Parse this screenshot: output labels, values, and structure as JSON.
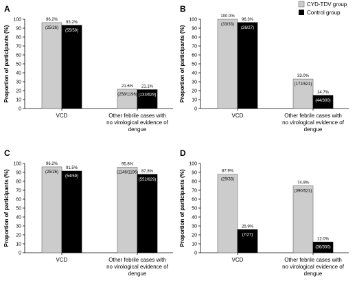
{
  "legend": {
    "placement": "top-right",
    "items": [
      {
        "label": "CYD-TDV group",
        "color": "#cccccc"
      },
      {
        "label": "Control group",
        "color": "#000000"
      }
    ]
  },
  "chart_data": [
    {
      "panel": "A",
      "type": "bar",
      "ylabel": "Proportion of participants (%)",
      "ylim": [
        0,
        100
      ],
      "yticks": [
        0,
        10,
        20,
        30,
        40,
        50,
        60,
        70,
        80,
        90,
        100
      ],
      "categories": [
        "VCD",
        "Other febrile cases with no virological evidence of dengue"
      ],
      "series": [
        {
          "name": "CYD-TDV group",
          "color": "#cccccc",
          "values": [
            96.2,
            21.6
          ],
          "pct_labels": [
            "96.2%",
            "21.6%"
          ],
          "count_labels": [
            "(25/26)",
            "(258/1196)"
          ]
        },
        {
          "name": "Control group",
          "color": "#000000",
          "values": [
            93.2,
            21.1
          ],
          "pct_labels": [
            "93.2%",
            "21.1%"
          ],
          "count_labels": [
            "(55/59)",
            "(133/629)"
          ]
        }
      ]
    },
    {
      "panel": "B",
      "type": "bar",
      "ylabel": "Proportion of participants (%)",
      "ylim": [
        0,
        100
      ],
      "yticks": [
        0,
        10,
        20,
        30,
        40,
        50,
        60,
        70,
        80,
        90,
        100
      ],
      "categories": [
        "VCD",
        "Other febrile cases with no virological evidence of dengue"
      ],
      "series": [
        {
          "name": "CYD-TDV group",
          "color": "#cccccc",
          "values": [
            100.0,
            33.0
          ],
          "pct_labels": [
            "100.0%",
            "33.0%"
          ],
          "count_labels": [
            "(33/33)",
            "(172/521)"
          ]
        },
        {
          "name": "Control group",
          "color": "#000000",
          "values": [
            96.3,
            14.7
          ],
          "pct_labels": [
            "96.3%",
            "14.7%"
          ],
          "count_labels": [
            "(26/27)",
            "(44/300)"
          ]
        }
      ]
    },
    {
      "panel": "C",
      "type": "bar",
      "ylabel": "Proportion of participants (%)",
      "ylim": [
        0,
        100
      ],
      "yticks": [
        0,
        10,
        20,
        30,
        40,
        50,
        60,
        70,
        80,
        90,
        100
      ],
      "categories": [
        "VCD",
        "Other febrile cases with no virological evidence of dengue"
      ],
      "series": [
        {
          "name": "CYD-TDV group",
          "color": "#cccccc",
          "values": [
            96.2,
            95.8
          ],
          "pct_labels": [
            "96.2%",
            "95.8%"
          ],
          "count_labels": [
            "(25/26)",
            "(1146/1196)"
          ]
        },
        {
          "name": "Control group",
          "color": "#000000",
          "values": [
            91.5,
            87.8
          ],
          "pct_labels": [
            "91.5%",
            "87.8%"
          ],
          "count_labels": [
            "(54/59)",
            "(552/629)"
          ]
        }
      ]
    },
    {
      "panel": "D",
      "type": "bar",
      "ylabel": "Proportion of participants (%)",
      "ylim": [
        0,
        100
      ],
      "yticks": [
        0,
        10,
        20,
        30,
        40,
        50,
        60,
        70,
        80,
        90,
        100
      ],
      "categories": [
        "VCD",
        "Other febrile cases with no virological evidence of dengue"
      ],
      "series": [
        {
          "name": "CYD-TDV group",
          "color": "#cccccc",
          "values": [
            87.9,
            74.9
          ],
          "pct_labels": [
            "87.9%",
            "74.9%"
          ],
          "count_labels": [
            "(29/33)",
            "(390/521)"
          ]
        },
        {
          "name": "Control group",
          "color": "#000000",
          "values": [
            25.9,
            12.0
          ],
          "pct_labels": [
            "25.9%",
            "12.0%"
          ],
          "count_labels": [
            "(7/27)",
            "(36/300)"
          ]
        }
      ]
    }
  ]
}
